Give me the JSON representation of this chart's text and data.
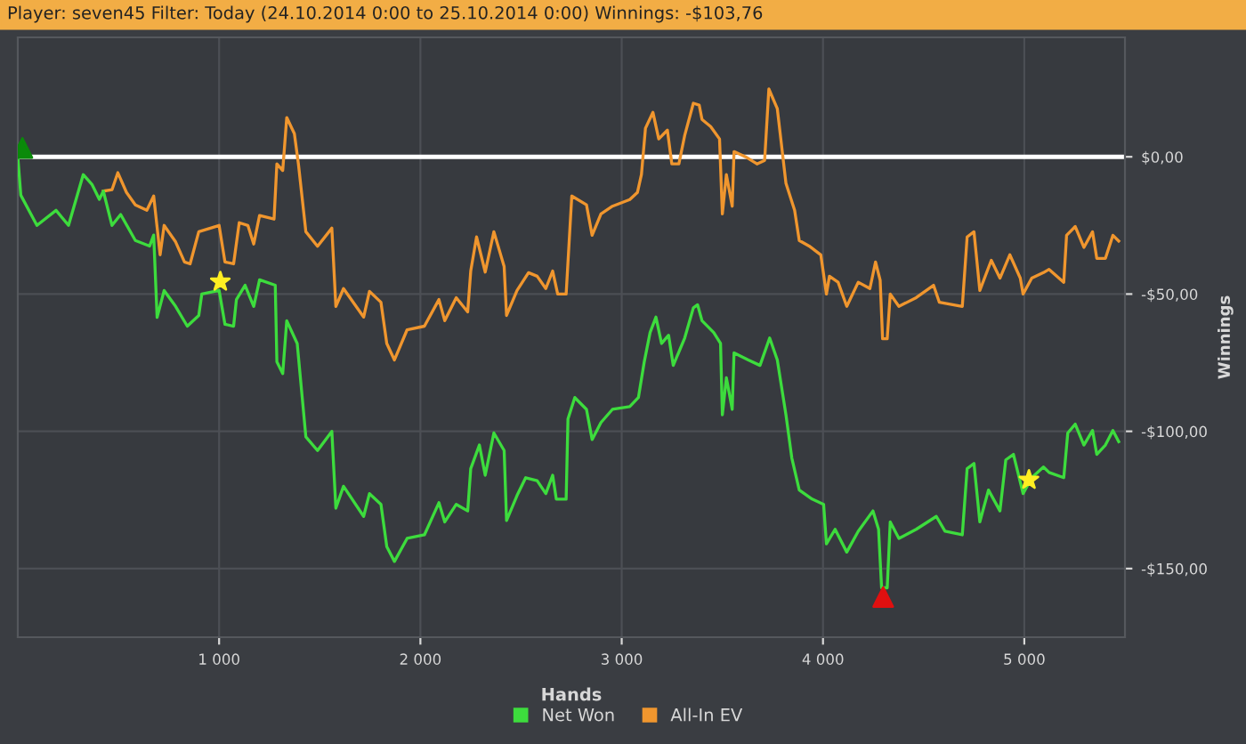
{
  "chart_data": {
    "type": "line",
    "title": "Player: seven45 Filter: Today (24.10.2014 0:00 to 25.10.2014 0:00) Winnings: -$103,76",
    "xlabel": "Hands",
    "ylabel": "Winnings",
    "xlim": [
      0,
      5500
    ],
    "ylim": [
      -175,
      43.5
    ],
    "xticks": [
      {
        "value": 1000,
        "label": "1 000"
      },
      {
        "value": 2000,
        "label": "2 000"
      },
      {
        "value": 3000,
        "label": "3 000"
      },
      {
        "value": 4000,
        "label": "4 000"
      },
      {
        "value": 5000,
        "label": "5 000"
      }
    ],
    "yticks": [
      {
        "value": 0,
        "label": "$0,00"
      },
      {
        "value": -50,
        "label": "-$50,00"
      },
      {
        "value": -100,
        "label": "-$100,00"
      },
      {
        "value": -150,
        "label": "-$150,00"
      }
    ],
    "grid": true,
    "legend": "bottom",
    "ref_lines": [
      {
        "axis": "y",
        "value": 0,
        "label": null,
        "color": "#ffffff"
      }
    ],
    "series": [
      {
        "name": "Net Won",
        "color": "#3ddc3d",
        "x": [
          0,
          15,
          95,
          190,
          252,
          325,
          368,
          405,
          425,
          468,
          511,
          584,
          655,
          675,
          692,
          727,
          784,
          842,
          899,
          914,
          1000,
          1029,
          1072,
          1086,
          1129,
          1172,
          1201,
          1279,
          1287,
          1316,
          1336,
          1388,
          1431,
          1489,
          1560,
          1580,
          1618,
          1718,
          1747,
          1804,
          1833,
          1871,
          1934,
          2020,
          2092,
          2121,
          2178,
          2235,
          2250,
          2293,
          2322,
          2365,
          2416,
          2428,
          2480,
          2523,
          2580,
          2623,
          2657,
          2675,
          2724,
          2733,
          2767,
          2825,
          2853,
          2897,
          2954,
          3040,
          3083,
          3112,
          3141,
          3170,
          3198,
          3233,
          3256,
          3313,
          3356,
          3377,
          3399,
          3457,
          3491,
          3500,
          3520,
          3549,
          3558,
          3629,
          3687,
          3735,
          3773,
          3816,
          3845,
          3882,
          3946,
          4003,
          4017,
          4060,
          4118,
          4175,
          4248,
          4276,
          4291,
          4319,
          4334,
          4377,
          4463,
          4563,
          4606,
          4692,
          4716,
          4750,
          4779,
          4822,
          4879,
          4908,
          4946,
          4994,
          5037,
          5095,
          5123,
          5196,
          5216,
          5253,
          5296,
          5339,
          5360,
          5403,
          5440,
          5469
        ],
        "values": [
          0,
          -14,
          -25,
          -19.5,
          -25,
          -6.5,
          -10,
          -15.5,
          -12.5,
          -25,
          -21,
          -30.5,
          -32.5,
          -28.5,
          -58.5,
          -48.7,
          -54.5,
          -61.7,
          -57.8,
          -50,
          -48.7,
          -61,
          -61.7,
          -52,
          -46.8,
          -54.5,
          -44.8,
          -46.8,
          -74.7,
          -79,
          -59.7,
          -68,
          -102,
          -107,
          -100,
          -128,
          -120,
          -131,
          -122.7,
          -126.6,
          -142,
          -147.4,
          -139,
          -137.7,
          -126,
          -133,
          -126.6,
          -129,
          -113.6,
          -105,
          -116,
          -100.6,
          -107,
          -132.5,
          -123.4,
          -116.9,
          -118,
          -122.7,
          -116,
          -124.7,
          -124.7,
          -95.5,
          -87.7,
          -92,
          -103,
          -96.8,
          -92,
          -91,
          -87.7,
          -74.7,
          -64,
          -58.4,
          -68,
          -65,
          -76,
          -66,
          -55,
          -53.9,
          -59.7,
          -64,
          -68,
          -94,
          -80.5,
          -92,
          -71.4,
          -74,
          -76,
          -66,
          -74,
          -94,
          -109.7,
          -121.4,
          -124.7,
          -126.6,
          -141,
          -135.7,
          -144,
          -136.4,
          -129,
          -135.7,
          -157,
          -157,
          -133,
          -139,
          -135.7,
          -131,
          -136.4,
          -137.7,
          -113.6,
          -111.7,
          -133,
          -121.4,
          -129,
          -110.4,
          -108.4,
          -122.7,
          -116.9,
          -113,
          -115,
          -116.9,
          -100.6,
          -97.4,
          -105,
          -99.7,
          -108.4,
          -105,
          -99.7,
          -103.8
        ]
      },
      {
        "name": "All-In EV",
        "color": "#f0962e",
        "x": [
          425,
          468,
          497,
          540,
          584,
          641,
          675,
          707,
          727,
          784,
          828,
          856,
          899,
          1000,
          1029,
          1072,
          1100,
          1143,
          1172,
          1201,
          1273,
          1287,
          1316,
          1336,
          1374,
          1394,
          1431,
          1489,
          1560,
          1580,
          1618,
          1718,
          1747,
          1804,
          1833,
          1871,
          1934,
          2020,
          2092,
          2121,
          2178,
          2235,
          2250,
          2279,
          2322,
          2365,
          2416,
          2428,
          2480,
          2537,
          2580,
          2623,
          2657,
          2682,
          2724,
          2752,
          2825,
          2853,
          2897,
          2954,
          3040,
          3078,
          3098,
          3118,
          3155,
          3184,
          3227,
          3249,
          3284,
          3313,
          3356,
          3385,
          3399,
          3442,
          3486,
          3500,
          3520,
          3549,
          3558,
          3615,
          3672,
          3710,
          3731,
          3773,
          3816,
          3859,
          3882,
          3931,
          3989,
          4017,
          4032,
          4075,
          4118,
          4175,
          4233,
          4261,
          4284,
          4296,
          4319,
          4334,
          4377,
          4463,
          4549,
          4578,
          4692,
          4716,
          4750,
          4779,
          4836,
          4879,
          4928,
          4980,
          4994,
          5037,
          5095,
          5123,
          5196,
          5210,
          5253,
          5296,
          5339,
          5360,
          5403,
          5440,
          5469
        ],
        "values": [
          -12.5,
          -12,
          -5.8,
          -13,
          -17.5,
          -19.5,
          -14.3,
          -35.7,
          -25,
          -31,
          -38.3,
          -39,
          -27.3,
          -25,
          -38.3,
          -39,
          -24,
          -25,
          -31.8,
          -21.4,
          -22.7,
          -2.6,
          -5,
          14.3,
          8.4,
          -2.6,
          -27.3,
          -32.6,
          -26,
          -54.5,
          -48,
          -58.4,
          -49,
          -53,
          -68,
          -74,
          -63,
          -61.7,
          -52,
          -59.7,
          -51.3,
          -56.5,
          -41.6,
          -29.2,
          -42,
          -27.3,
          -40,
          -57.8,
          -48.7,
          -42.2,
          -43.5,
          -48,
          -41.6,
          -50,
          -50,
          -14.3,
          -17.5,
          -28.6,
          -20.8,
          -18,
          -15.6,
          -13,
          -6.5,
          10.4,
          16.2,
          6.5,
          9.7,
          -2.6,
          -2.6,
          7.8,
          19.5,
          18.8,
          13.6,
          11,
          6.5,
          -20.8,
          -6.5,
          -18,
          1.9,
          0,
          -2.6,
          -1.3,
          24.7,
          17.5,
          -9.7,
          -19.5,
          -30.5,
          -32.5,
          -35.7,
          -50,
          -43.5,
          -45.7,
          -54.5,
          -45.7,
          -48,
          -38.3,
          -45,
          -66.3,
          -66.3,
          -50,
          -54.5,
          -51.3,
          -46.8,
          -53,
          -54.5,
          -29.2,
          -27.3,
          -48.7,
          -37.7,
          -44.2,
          -35.7,
          -44.2,
          -50,
          -44.2,
          -42.2,
          -41,
          -45.7,
          -28.6,
          -25.4,
          -33,
          -27.3,
          -37,
          -37,
          -28.6,
          -30.7
        ]
      },
      {
        "type": "scatter",
        "marker": "star",
        "color": "#ffee22",
        "x": [
          1006,
          5023
        ],
        "values": [
          -45.5,
          -117.7
        ]
      },
      {
        "type": "scatter",
        "marker": "triangle",
        "color": "#0a8a0a",
        "x": [
          23
        ],
        "values": [
          3.2
        ]
      },
      {
        "type": "scatter",
        "marker": "triangle",
        "color": "#e01010",
        "x": [
          4299
        ],
        "values": [
          -160.4
        ]
      }
    ]
  }
}
